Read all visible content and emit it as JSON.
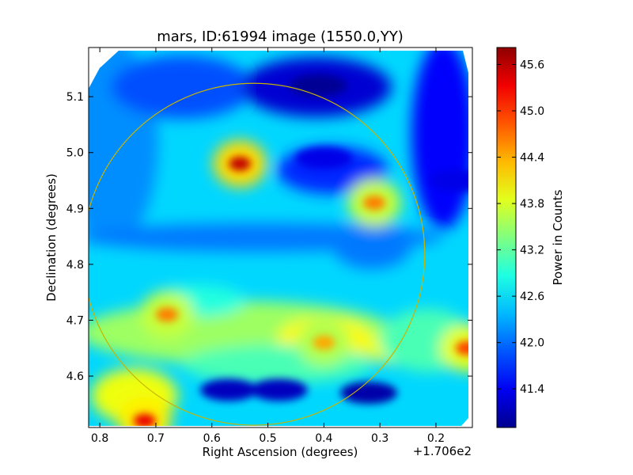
{
  "chart_data": [
    {
      "type": "heatmap",
      "title": "mars, ID:61994 image (1550.0,YY)",
      "xlabel": "Right Ascension (degrees)",
      "ylabel": "Declination (degrees)",
      "x_offset_label": "+1.706e2",
      "xlim": [
        0.82,
        0.135
      ],
      "ylim": [
        4.508,
        5.188
      ],
      "x_ticks": [
        0.8,
        0.7,
        0.6,
        0.5,
        0.4,
        0.3,
        0.2
      ],
      "x_tick_labels": [
        "0.8",
        "0.7",
        "0.6",
        "0.5",
        "0.4",
        "0.3",
        "0.2"
      ],
      "y_ticks": [
        4.6,
        4.7,
        4.8,
        4.9,
        5.0,
        5.1
      ],
      "y_tick_labels": [
        "4.6",
        "4.7",
        "4.8",
        "4.9",
        "5.0",
        "5.1"
      ],
      "colormap": "jet",
      "clim": [
        40.9,
        45.82
      ],
      "hotspots": [
        {
          "x": 0.55,
          "y": 4.98,
          "value": 45.5
        },
        {
          "x": 0.72,
          "y": 4.52,
          "value": 45.3
        },
        {
          "x": 0.31,
          "y": 4.91,
          "value": 44.6
        },
        {
          "x": 0.68,
          "y": 4.71,
          "value": 44.6
        },
        {
          "x": 0.4,
          "y": 4.66,
          "value": 44.4
        },
        {
          "x": 0.145,
          "y": 4.65,
          "value": 44.9
        }
      ],
      "lowspots": [
        {
          "x": 0.41,
          "y": 5.12,
          "value": 41.0
        },
        {
          "x": 0.32,
          "y": 4.57,
          "value": 41.1
        },
        {
          "x": 0.48,
          "y": 4.575,
          "value": 41.2
        },
        {
          "x": 0.57,
          "y": 4.575,
          "value": 41.2
        },
        {
          "x": 0.4,
          "y": 4.99,
          "value": 41.4
        },
        {
          "x": 0.16,
          "y": 4.95,
          "value": 41.4
        }
      ],
      "circle": {
        "center_x": 0.525,
        "center_y": 4.818,
        "radius_deg": 0.305,
        "color": "#c8b400"
      }
    },
    {
      "type": "colorbar",
      "label": "Power in Counts",
      "ticks": [
        41.4,
        42.0,
        42.6,
        43.2,
        43.8,
        44.4,
        45.0,
        45.6
      ],
      "tick_labels": [
        "41.4",
        "42.0",
        "42.6",
        "43.2",
        "43.8",
        "44.4",
        "45.0",
        "45.6"
      ],
      "range": [
        40.9,
        45.82
      ]
    }
  ]
}
